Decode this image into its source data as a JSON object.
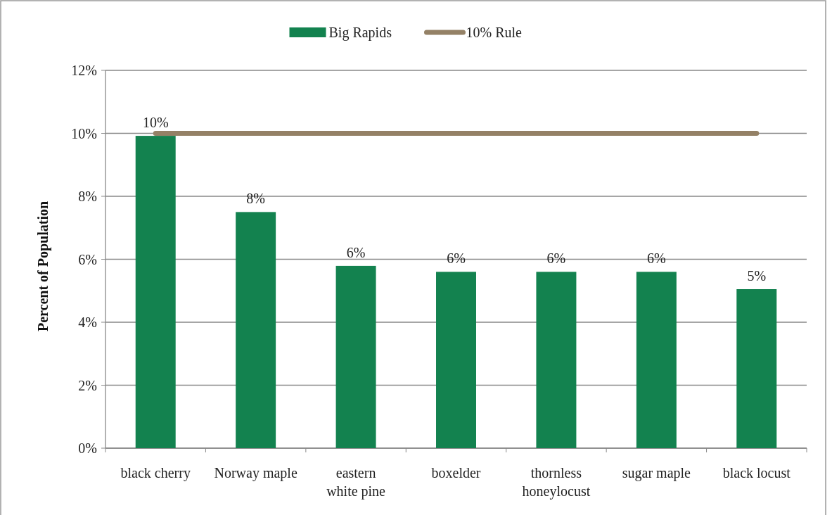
{
  "chart_data": {
    "type": "bar",
    "ylabel": "Percent of Population",
    "categories": [
      "black cherry",
      "Norway maple",
      "eastern white pine",
      "boxelder",
      "thornless honeylocust",
      "sugar maple",
      "black locust"
    ],
    "series": [
      {
        "name": "Big Rapids",
        "color": "#13824f",
        "values": [
          9.92,
          7.5,
          5.79,
          5.6,
          5.6,
          5.6,
          5.05
        ],
        "value_labels": [
          "10%",
          "8%",
          "6%",
          "6%",
          "6%",
          "6%",
          "5%"
        ]
      },
      {
        "name": "10% Rule",
        "type": "line",
        "color": "#948166",
        "values": [
          10,
          10,
          10,
          10,
          10,
          10,
          10
        ]
      }
    ],
    "ylim": [
      0,
      12
    ],
    "yticks": [
      {
        "value": 0,
        "label": "0%"
      },
      {
        "value": 2,
        "label": "2%"
      },
      {
        "value": 4,
        "label": "4%"
      },
      {
        "value": 6,
        "label": "6%"
      },
      {
        "value": 8,
        "label": "8%"
      },
      {
        "value": 10,
        "label": "10%"
      },
      {
        "value": 12,
        "label": "12%"
      }
    ],
    "grid": "y",
    "legend": "top",
    "marker": "none",
    "line_style": "solid"
  }
}
